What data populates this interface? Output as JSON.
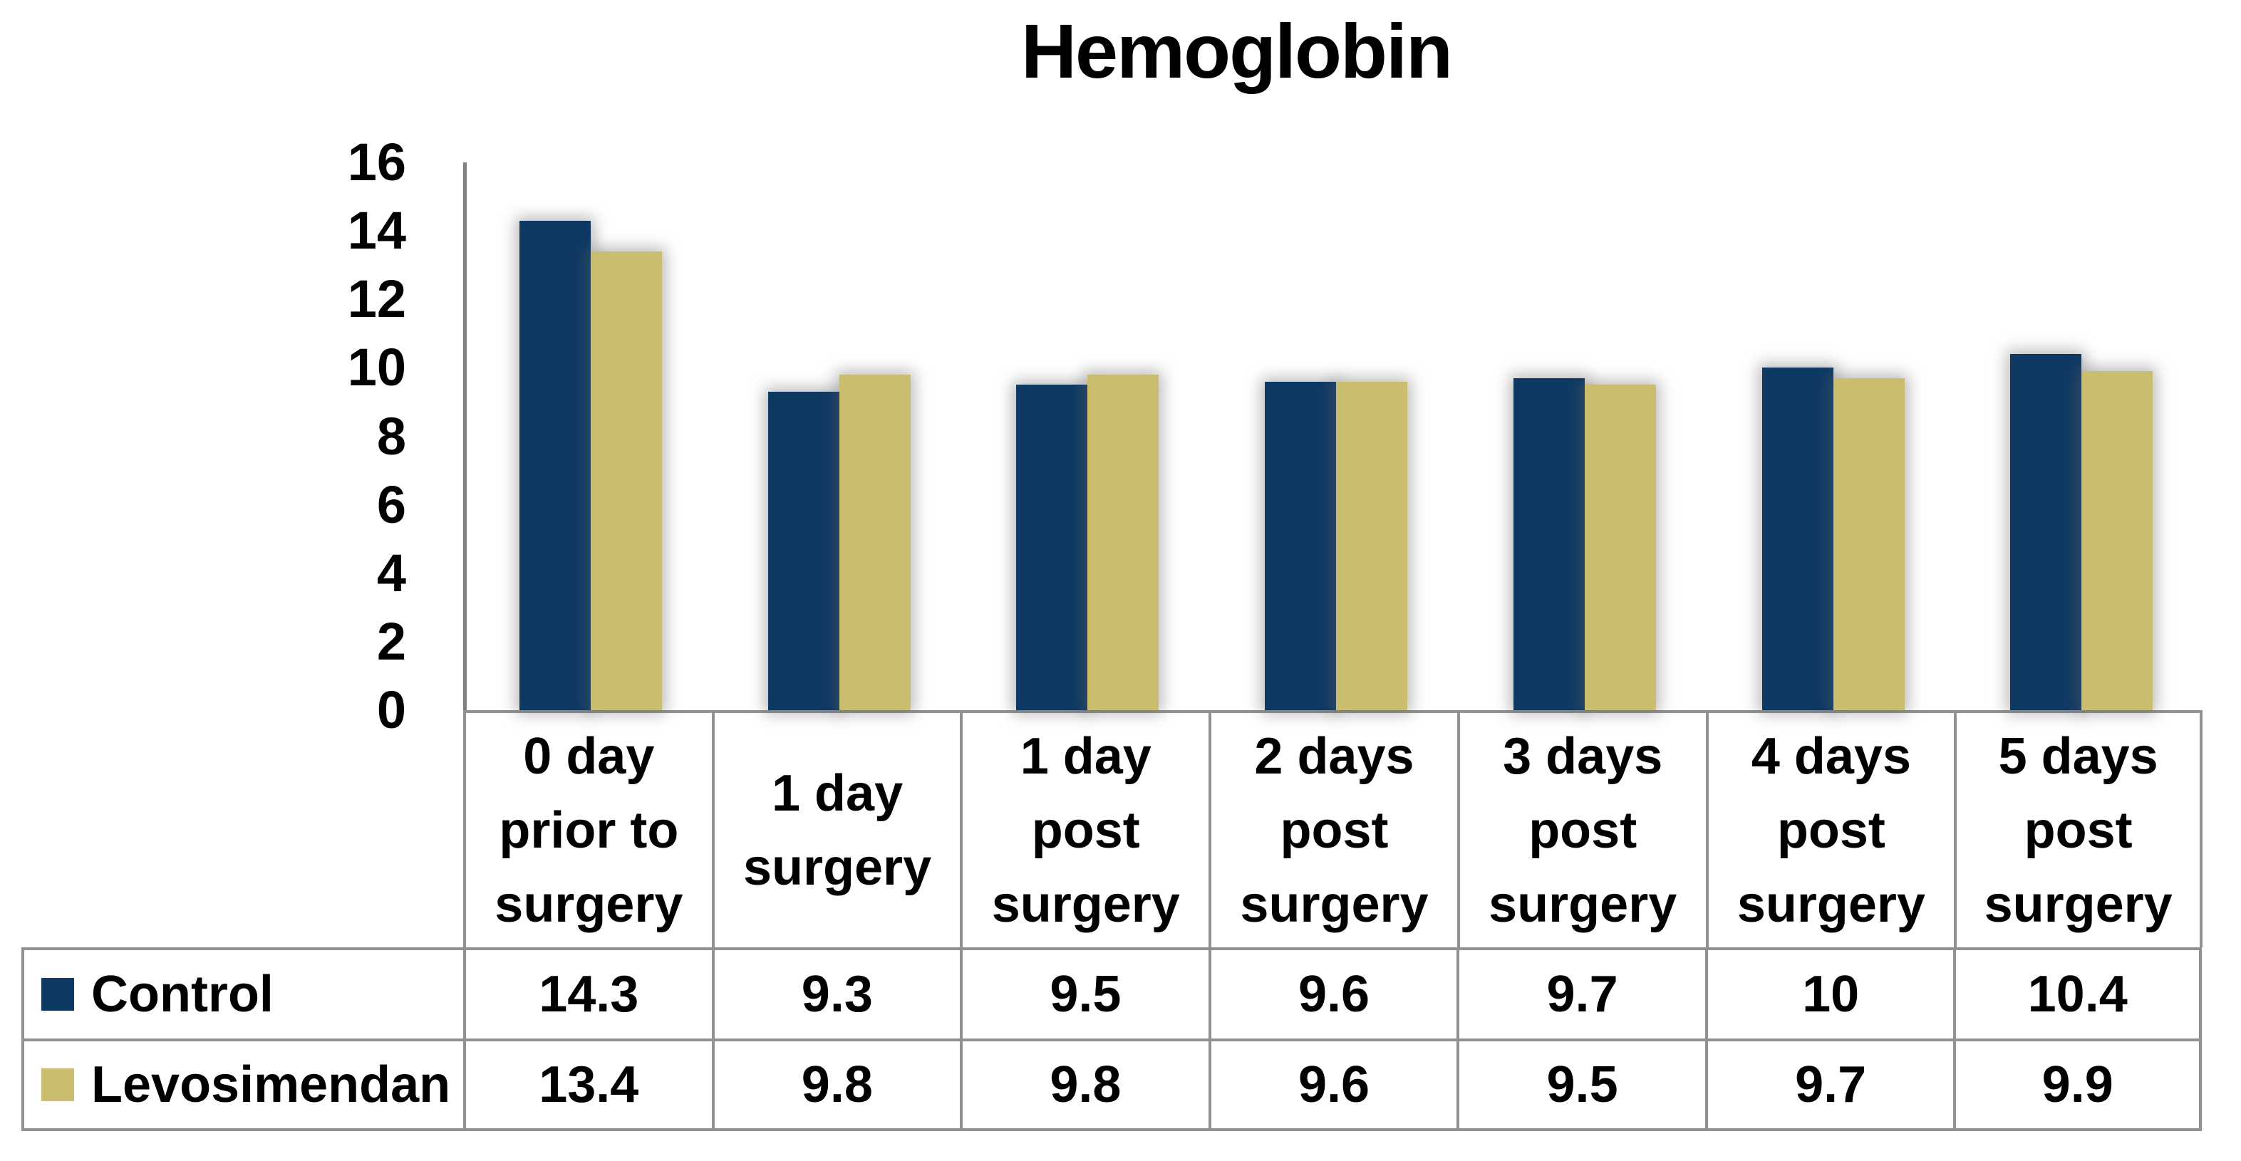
{
  "chart_data": {
    "type": "bar",
    "title": "Hemoglobin",
    "categories": [
      "0 day prior to surgery",
      "1 day surgery",
      "1 day post surgery",
      "2 days post surgery",
      "3 days post surgery",
      "4 days post surgery",
      "5 days post surgery"
    ],
    "series": [
      {
        "name": "Control",
        "color": "#0E3963",
        "values": [
          14.3,
          9.3,
          9.5,
          9.6,
          9.7,
          10,
          10.4
        ]
      },
      {
        "name": "Levosimendan",
        "color": "#CBBD6E",
        "values": [
          13.4,
          9.8,
          9.8,
          9.6,
          9.5,
          9.7,
          9.9
        ]
      }
    ],
    "yticks": [
      16,
      14,
      12,
      10,
      8,
      6,
      4,
      2,
      0
    ],
    "ylim": [
      0,
      16
    ],
    "grid": false,
    "legend_position": "table-left",
    "layout": "grouped column chart with data table beneath x axis"
  },
  "colors": {
    "axis_line": "#7F7F7F",
    "table_border": "#919191",
    "text": "#000000",
    "background": "#FFFFFF",
    "bar_shadow": "rgba(100,100,100,0.45)"
  }
}
